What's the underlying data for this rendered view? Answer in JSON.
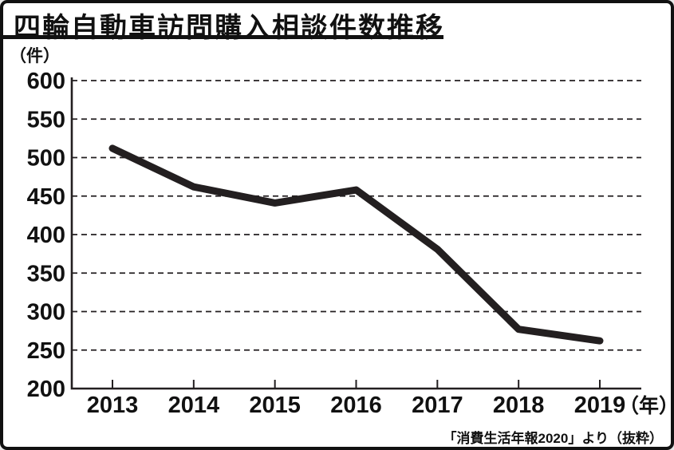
{
  "labels": {
    "y_unit": "（件）",
    "x_suffix": "（年）"
  },
  "chart_data": {
    "type": "line",
    "title": "四輪自動車訪問購入相談件数推移",
    "categories": [
      "2013",
      "2014",
      "2015",
      "2016",
      "2017",
      "2018",
      "2019"
    ],
    "values": [
      512,
      462,
      441,
      458,
      381,
      277,
      262
    ],
    "xlabel": "年",
    "ylabel": "件",
    "ylim": [
      200,
      600
    ],
    "y_ticks": [
      200,
      250,
      300,
      350,
      400,
      450,
      500,
      550,
      600
    ],
    "grid": "horizontal-dashed",
    "legend": "none",
    "line_color": "#231f20",
    "axis_color": "#231f20",
    "source": "「消費生活年報2020」より（抜粋）"
  }
}
